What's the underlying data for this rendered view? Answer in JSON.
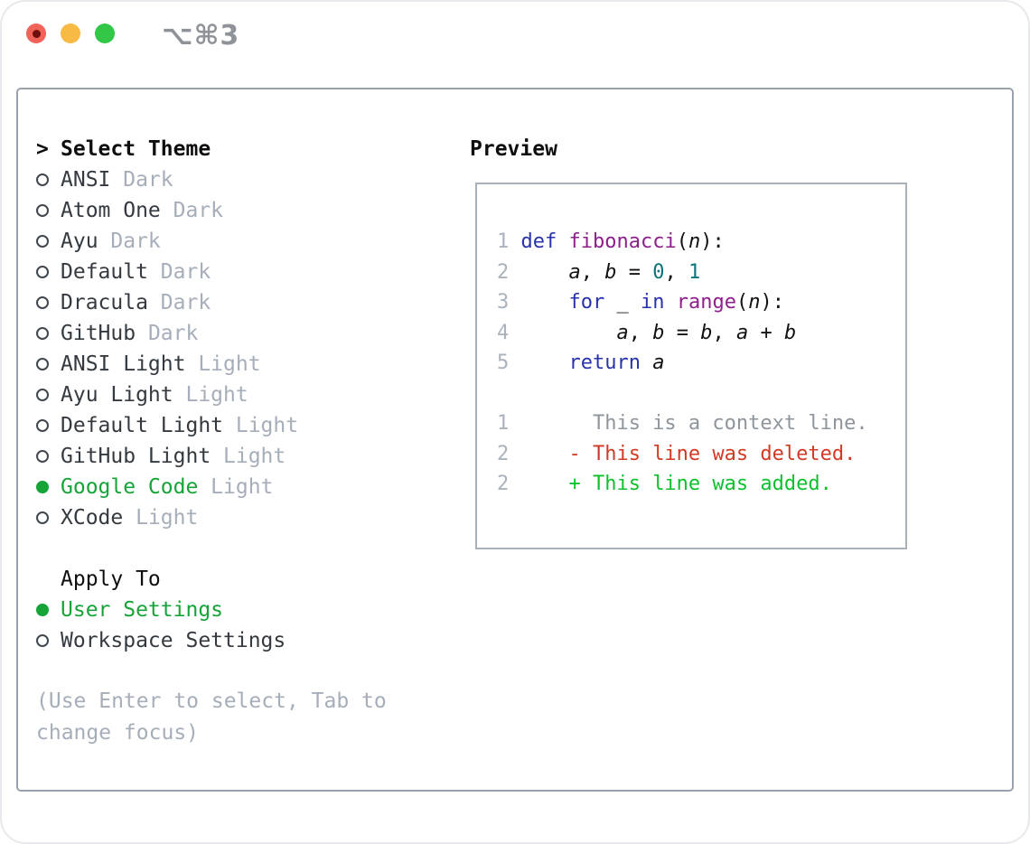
{
  "window": {
    "title": "⌥⌘3"
  },
  "theme_picker": {
    "header_prefix": ">",
    "header": "Select Theme",
    "themes": [
      {
        "name": "ANSI",
        "variant": "Dark",
        "selected": false
      },
      {
        "name": "Atom One",
        "variant": "Dark",
        "selected": false
      },
      {
        "name": "Ayu",
        "variant": "Dark",
        "selected": false
      },
      {
        "name": "Default",
        "variant": "Dark",
        "selected": false
      },
      {
        "name": "Dracula",
        "variant": "Dark",
        "selected": false
      },
      {
        "name": "GitHub",
        "variant": "Dark",
        "selected": false
      },
      {
        "name": "ANSI Light",
        "variant": "Light",
        "selected": false
      },
      {
        "name": "Ayu Light",
        "variant": "Light",
        "selected": false
      },
      {
        "name": "Default Light",
        "variant": "Light",
        "selected": false
      },
      {
        "name": "GitHub Light",
        "variant": "Light",
        "selected": false
      },
      {
        "name": "Google Code",
        "variant": "Light",
        "selected": true
      },
      {
        "name": "XCode",
        "variant": "Light",
        "selected": false
      }
    ],
    "apply_to": {
      "header": "Apply To",
      "options": [
        {
          "label": "User Settings",
          "selected": true
        },
        {
          "label": "Workspace Settings",
          "selected": false
        }
      ]
    },
    "help_text": "(Use Enter to select, Tab to change focus)"
  },
  "preview": {
    "header": "Preview",
    "code_lines": [
      {
        "tokens": [
          [
            "lineno",
            "1"
          ],
          [
            "plain",
            " "
          ],
          [
            "keyword",
            "def"
          ],
          [
            "plain",
            " "
          ],
          [
            "function",
            "fibonacci"
          ],
          [
            "plain",
            "("
          ],
          [
            "variable",
            "n"
          ],
          [
            "plain",
            "):"
          ]
        ]
      },
      {
        "tokens": [
          [
            "lineno",
            "2"
          ],
          [
            "plain",
            "     "
          ],
          [
            "variable",
            "a"
          ],
          [
            "plain",
            ", "
          ],
          [
            "variable",
            "b"
          ],
          [
            "plain",
            " = "
          ],
          [
            "number",
            "0"
          ],
          [
            "plain",
            ", "
          ],
          [
            "number",
            "1"
          ]
        ]
      },
      {
        "tokens": [
          [
            "lineno",
            "3"
          ],
          [
            "plain",
            "     "
          ],
          [
            "keyword",
            "for"
          ],
          [
            "plain",
            " _ "
          ],
          [
            "keyword",
            "in"
          ],
          [
            "plain",
            " "
          ],
          [
            "function",
            "range"
          ],
          [
            "plain",
            "("
          ],
          [
            "variable",
            "n"
          ],
          [
            "plain",
            "):"
          ]
        ]
      },
      {
        "tokens": [
          [
            "lineno",
            "4"
          ],
          [
            "plain",
            "         "
          ],
          [
            "variable",
            "a"
          ],
          [
            "plain",
            ", "
          ],
          [
            "variable",
            "b"
          ],
          [
            "plain",
            " = "
          ],
          [
            "variable",
            "b"
          ],
          [
            "plain",
            ", "
          ],
          [
            "variable",
            "a"
          ],
          [
            "plain",
            " + "
          ],
          [
            "variable",
            "b"
          ]
        ]
      },
      {
        "tokens": [
          [
            "lineno",
            "5"
          ],
          [
            "plain",
            "     "
          ],
          [
            "keyword",
            "return"
          ],
          [
            "plain",
            " "
          ],
          [
            "variable",
            "a"
          ]
        ]
      },
      {
        "tokens": []
      },
      {
        "tokens": [
          [
            "lineno",
            "1"
          ],
          [
            "context",
            "       This is a context line."
          ]
        ]
      },
      {
        "tokens": [
          [
            "lineno",
            "2"
          ],
          [
            "deleted",
            "     - This line was deleted."
          ]
        ]
      },
      {
        "tokens": [
          [
            "lineno",
            "2"
          ],
          [
            "added",
            "     + This line was added."
          ]
        ]
      }
    ]
  },
  "colors": {
    "green": "#16a438",
    "item_text": "#343a40",
    "muted": "#a6aeba",
    "circle": "#41474e",
    "header_text": "#0d0e0f",
    "keyword": "#2832ab",
    "function": "#8e208c",
    "number": "#0d7478",
    "lineno": "#a9b2bd",
    "context": "#8e959c",
    "deleted": "#d23a23",
    "added": "#0fc02e",
    "panel_border": "#99a2ac",
    "preview_border": "#a9b0b8",
    "title_text": "#8f9399",
    "light_red": "#f16258",
    "light_red_dot": "#6d0f0c",
    "light_yellow": "#f7bb45",
    "light_green": "#33c748"
  }
}
